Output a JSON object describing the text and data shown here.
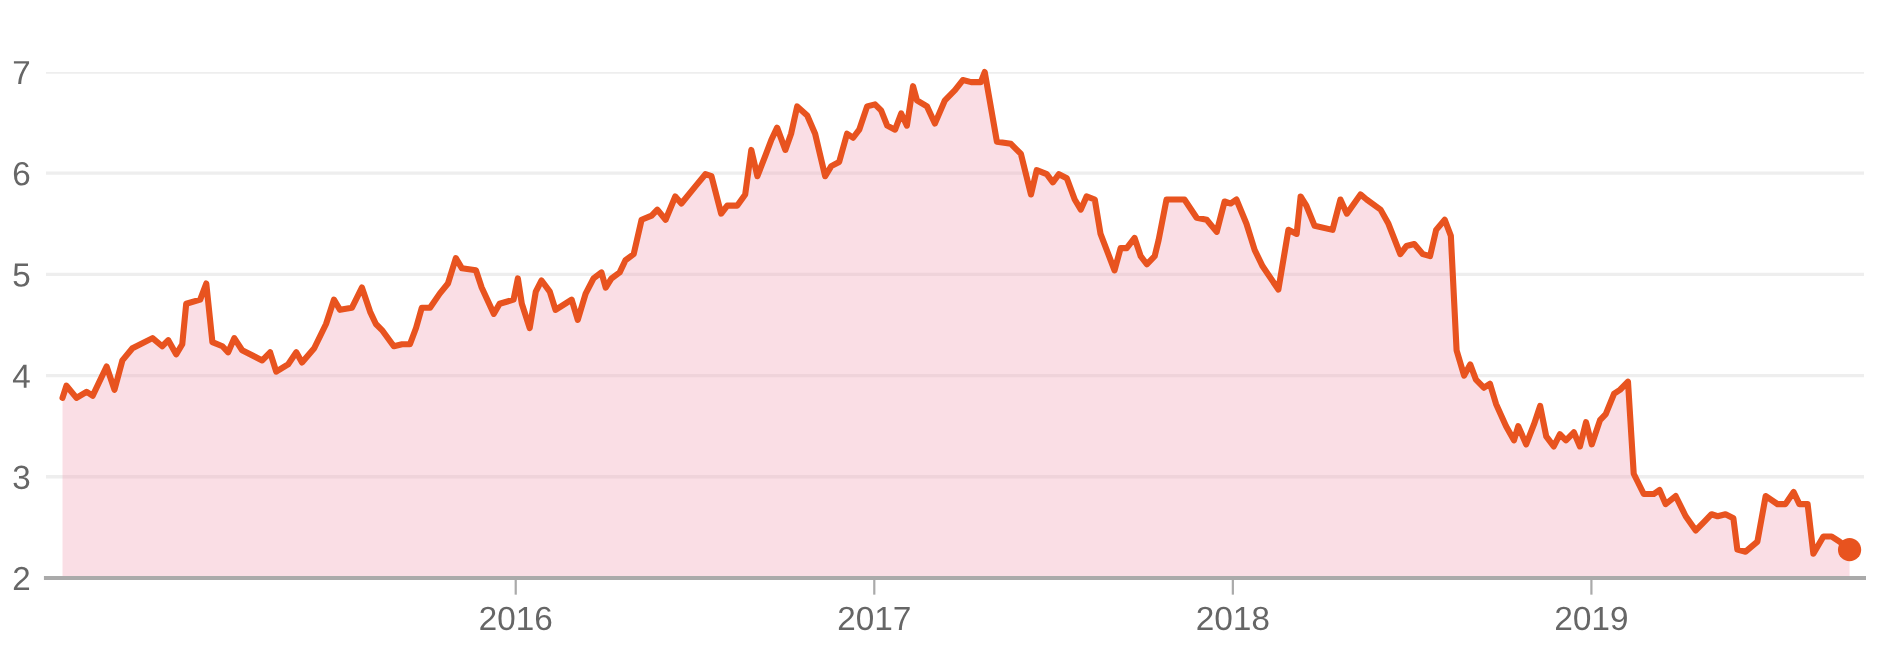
{
  "chart_data": {
    "type": "area",
    "xlim": [
      2014.69,
      2019.76
    ],
    "xticks": [
      2016,
      2017,
      2018,
      2019
    ],
    "ylim": [
      2,
      7
    ],
    "yticks": [
      2,
      3,
      4,
      5,
      6,
      7
    ],
    "grid": "y",
    "series": [
      {
        "color": "#e8531f",
        "x": [
          2014.736,
          2014.747,
          2014.775,
          2014.803,
          2014.82,
          2014.859,
          2014.881,
          2014.903,
          2014.931,
          2014.987,
          2015.014,
          2015.031,
          2015.053,
          2015.07,
          2015.081,
          2015.12,
          2015.137,
          2015.154,
          2015.182,
          2015.198,
          2015.215,
          2015.237,
          2015.293,
          2015.315,
          2015.332,
          2015.365,
          2015.388,
          2015.404,
          2015.438,
          2015.471,
          2015.493,
          2015.51,
          2015.543,
          2015.571,
          2015.594,
          2015.61,
          2015.627,
          2015.66,
          2015.683,
          2015.705,
          2015.722,
          2015.738,
          2015.761,
          2015.788,
          2015.811,
          2015.833,
          2015.85,
          2015.889,
          2015.905,
          2015.939,
          2015.955,
          2015.994,
          2016.006,
          2016.017,
          2016.039,
          2016.056,
          2016.072,
          2016.095,
          2016.111,
          2016.156,
          2016.173,
          2016.195,
          2016.217,
          2016.239,
          2016.251,
          2016.267,
          2016.29,
          2016.306,
          2016.329,
          2016.351,
          2016.379,
          2016.395,
          2016.418,
          2016.445,
          2016.462,
          2016.501,
          2016.529,
          2016.546,
          2016.573,
          2016.59,
          2016.618,
          2016.64,
          2016.657,
          2016.674,
          2016.696,
          2016.713,
          2016.729,
          2016.752,
          2016.768,
          2016.785,
          2016.813,
          2016.835,
          2016.863,
          2016.88,
          2016.902,
          2016.924,
          2016.941,
          2016.958,
          2016.98,
          2017.002,
          2017.019,
          2017.036,
          2017.058,
          2017.075,
          2017.091,
          2017.108,
          2017.119,
          2017.147,
          2017.169,
          2017.197,
          2017.225,
          2017.247,
          2017.27,
          2017.297,
          2017.308,
          2017.342,
          2017.381,
          2017.409,
          2017.437,
          2017.453,
          2017.481,
          2017.498,
          2017.515,
          2017.537,
          2017.559,
          2017.576,
          2017.592,
          2017.615,
          2017.631,
          2017.67,
          2017.687,
          2017.704,
          2017.726,
          2017.743,
          2017.76,
          2017.782,
          2017.793,
          2017.815,
          2017.865,
          2017.899,
          2017.927,
          2017.955,
          2017.977,
          2017.994,
          2018.01,
          2018.038,
          2018.061,
          2018.083,
          2018.127,
          2018.155,
          2018.178,
          2018.189,
          2018.205,
          2018.228,
          2018.278,
          2018.3,
          2018.318,
          2018.356,
          2018.373,
          2018.412,
          2018.434,
          2018.467,
          2018.484,
          2018.506,
          2018.53,
          2018.55,
          2018.567,
          2018.591,
          2018.608,
          2018.624,
          2018.645,
          2018.662,
          2018.678,
          2018.7,
          2018.717,
          2018.734,
          2018.762,
          2018.784,
          2018.796,
          2018.818,
          2018.84,
          2018.857,
          2018.874,
          2018.895,
          2018.912,
          2018.929,
          2018.951,
          2018.968,
          2018.985,
          2019.001,
          2019.024,
          2019.04,
          2019.063,
          2019.08,
          2019.102,
          2019.118,
          2019.146,
          2019.174,
          2019.19,
          2019.207,
          2019.235,
          2019.263,
          2019.291,
          2019.313,
          2019.335,
          2019.352,
          2019.374,
          2019.396,
          2019.407,
          2019.43,
          2019.463,
          2019.486,
          2019.519,
          2019.541,
          2019.564,
          2019.58,
          2019.603,
          2019.619,
          2019.647,
          2019.67,
          2019.692,
          2019.72
        ],
        "values": [
          3.78,
          3.9,
          3.78,
          3.84,
          3.8,
          4.09,
          3.86,
          4.15,
          4.27,
          4.37,
          4.29,
          4.35,
          4.21,
          4.31,
          4.71,
          4.75,
          4.91,
          4.33,
          4.29,
          4.23,
          4.37,
          4.25,
          4.15,
          4.23,
          4.04,
          4.11,
          4.23,
          4.13,
          4.27,
          4.51,
          4.75,
          4.65,
          4.67,
          4.87,
          4.63,
          4.51,
          4.45,
          4.29,
          4.31,
          4.31,
          4.47,
          4.67,
          4.67,
          4.81,
          4.91,
          5.16,
          5.06,
          5.04,
          4.87,
          4.61,
          4.71,
          4.75,
          4.96,
          4.71,
          4.47,
          4.83,
          4.94,
          4.83,
          4.65,
          4.75,
          4.55,
          4.81,
          4.96,
          5.02,
          4.87,
          4.96,
          5.02,
          5.14,
          5.2,
          5.54,
          5.58,
          5.64,
          5.54,
          5.77,
          5.7,
          5.87,
          5.99,
          5.97,
          5.6,
          5.68,
          5.68,
          5.79,
          6.23,
          5.97,
          6.17,
          6.33,
          6.45,
          6.23,
          6.39,
          6.66,
          6.57,
          6.39,
          5.97,
          6.07,
          6.11,
          6.39,
          6.35,
          6.43,
          6.66,
          6.68,
          6.62,
          6.47,
          6.43,
          6.59,
          6.47,
          6.86,
          6.72,
          6.66,
          6.49,
          6.72,
          6.82,
          6.92,
          6.9,
          6.9,
          7.0,
          6.31,
          6.29,
          6.19,
          5.79,
          6.03,
          5.99,
          5.91,
          5.99,
          5.95,
          5.74,
          5.64,
          5.77,
          5.74,
          5.4,
          5.04,
          5.26,
          5.26,
          5.36,
          5.18,
          5.1,
          5.18,
          5.34,
          5.74,
          5.74,
          5.56,
          5.54,
          5.42,
          5.72,
          5.7,
          5.74,
          5.5,
          5.24,
          5.08,
          4.85,
          5.44,
          5.4,
          5.77,
          5.68,
          5.48,
          5.44,
          5.74,
          5.6,
          5.79,
          5.74,
          5.64,
          5.5,
          5.2,
          5.28,
          5.3,
          5.2,
          5.18,
          5.44,
          5.54,
          5.38,
          4.25,
          4.0,
          4.11,
          3.96,
          3.88,
          3.92,
          3.72,
          3.5,
          3.36,
          3.5,
          3.32,
          3.52,
          3.7,
          3.4,
          3.3,
          3.42,
          3.36,
          3.44,
          3.3,
          3.54,
          3.32,
          3.56,
          3.62,
          3.82,
          3.86,
          3.94,
          3.03,
          2.83,
          2.83,
          2.87,
          2.73,
          2.81,
          2.61,
          2.47,
          2.55,
          2.63,
          2.61,
          2.63,
          2.59,
          2.28,
          2.26,
          2.36,
          2.81,
          2.73,
          2.73,
          2.85,
          2.73,
          2.73,
          2.24,
          2.41,
          2.41,
          2.36,
          2.28
        ]
      },
      {
        "type": "scatter",
        "color": "#e8531f",
        "marker": "circle",
        "x": [
          2019.72
        ],
        "values": [
          2.28
        ]
      }
    ]
  }
}
